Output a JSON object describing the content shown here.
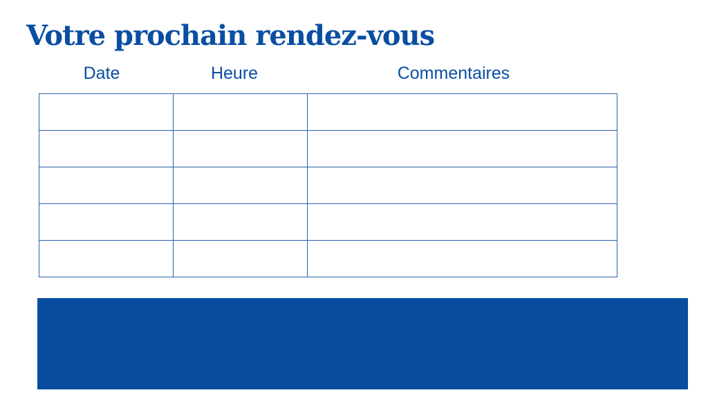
{
  "title": "Votre prochain rendez-vous",
  "table": {
    "headers": [
      "Date",
      "Heure",
      "Commentaires"
    ],
    "rows": [
      [
        "",
        "",
        ""
      ],
      [
        "",
        "",
        ""
      ],
      [
        "",
        "",
        ""
      ],
      [
        "",
        "",
        ""
      ],
      [
        "",
        "",
        ""
      ]
    ]
  },
  "colors": {
    "accent": "#094da0"
  }
}
